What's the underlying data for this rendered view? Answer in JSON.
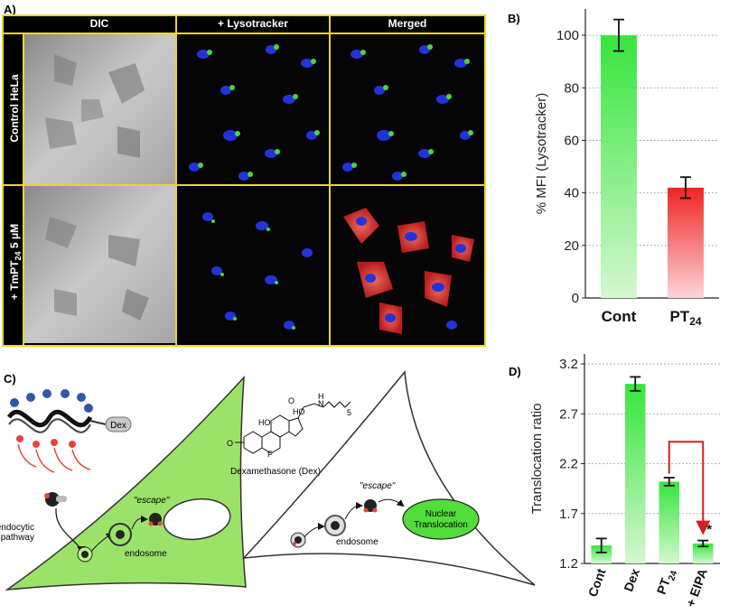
{
  "panel_a": {
    "label": "A)",
    "columns": [
      "DIC",
      "+ Lysotracker",
      "Merged"
    ],
    "row_1": "Control HeLa",
    "row_2_prefix": "+ TmPT",
    "row_2_sub": "24",
    "row_2_suffix": " 5 μM"
  },
  "panel_b": {
    "label": "B)"
  },
  "panel_c": {
    "label": "C)",
    "dex_tag": "Dex",
    "endocytic_line1": "endocytic",
    "endocytic_line2": "pathway",
    "endosome_left": "endosome",
    "escape_left": "\"escape\"",
    "struct_name": "Dexamethasone (Dex)",
    "endosome_right": "endosome",
    "escape_right": "\"escape\"",
    "nuclear_line1": "Nuclear",
    "nuclear_line2": "Translocation",
    "chem": {
      "HO1": "HO",
      "HO2": "HO",
      "H": "H",
      "N": "N",
      "O": "O",
      "F": "F",
      "sub5": "5"
    }
  },
  "panel_d": {
    "label": "D)",
    "significance": "*"
  },
  "chart_data": [
    {
      "type": "bar",
      "panel": "B",
      "categories": [
        "Cont",
        "PT24"
      ],
      "category_labels": [
        {
          "main": "Cont",
          "sub": ""
        },
        {
          "main": "PT",
          "sub": "24"
        }
      ],
      "values": [
        100,
        42
      ],
      "errors": [
        6,
        4
      ],
      "colors": [
        "#58e85a",
        "#f03a3a"
      ],
      "title": "",
      "xlabel": "",
      "ylabel": "% MFI (Lysotracker)",
      "ylim": [
        0,
        110
      ],
      "yticks": [
        0,
        20,
        40,
        60,
        80,
        100
      ],
      "grid": true
    },
    {
      "type": "bar",
      "panel": "D",
      "categories": [
        "Cont",
        "Dex",
        "PT24",
        "+ EIPA"
      ],
      "category_labels": [
        {
          "main": "Cont",
          "sub": ""
        },
        {
          "main": "Dex",
          "sub": ""
        },
        {
          "main": "PT",
          "sub": "24"
        },
        {
          "main": "+ EIPA",
          "sub": ""
        }
      ],
      "values": [
        1.38,
        3.0,
        2.02,
        1.4
      ],
      "errors": [
        0.07,
        0.07,
        0.04,
        0.03
      ],
      "colors": [
        "#58e85a",
        "#58e85a",
        "#58e85a",
        "#58e85a"
      ],
      "title": "",
      "xlabel": "",
      "ylabel": "Translocation ratio",
      "ylim": [
        1.2,
        3.3
      ],
      "yticks": [
        1.2,
        1.7,
        2.2,
        2.7,
        3.2
      ],
      "grid": true
    }
  ]
}
